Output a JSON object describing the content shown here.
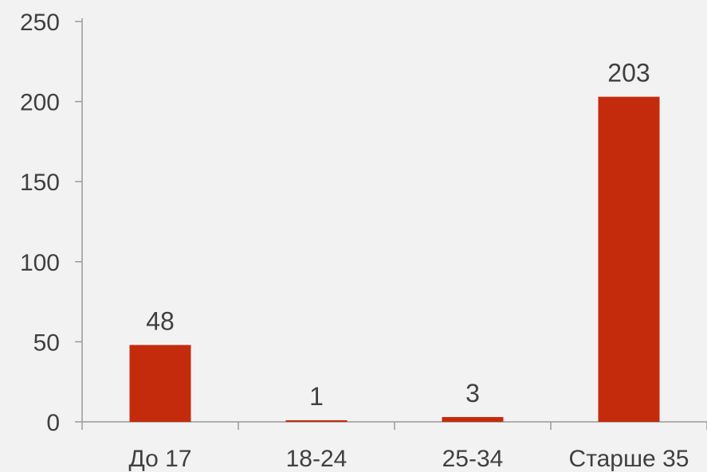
{
  "chart_data": {
    "type": "bar",
    "categories": [
      "До 17",
      "18-24",
      "25-34",
      "Старше 35"
    ],
    "values": [
      48,
      1,
      3,
      203
    ],
    "data_labels": [
      "48",
      "1",
      "3",
      "203"
    ],
    "y_ticks": [
      0,
      50,
      100,
      150,
      200,
      250
    ],
    "y_tick_labels": [
      "0",
      "50",
      "100",
      "150",
      "200",
      "250"
    ],
    "ylim": [
      0,
      250
    ],
    "grid": false,
    "bar_color": "#c42b0c"
  }
}
